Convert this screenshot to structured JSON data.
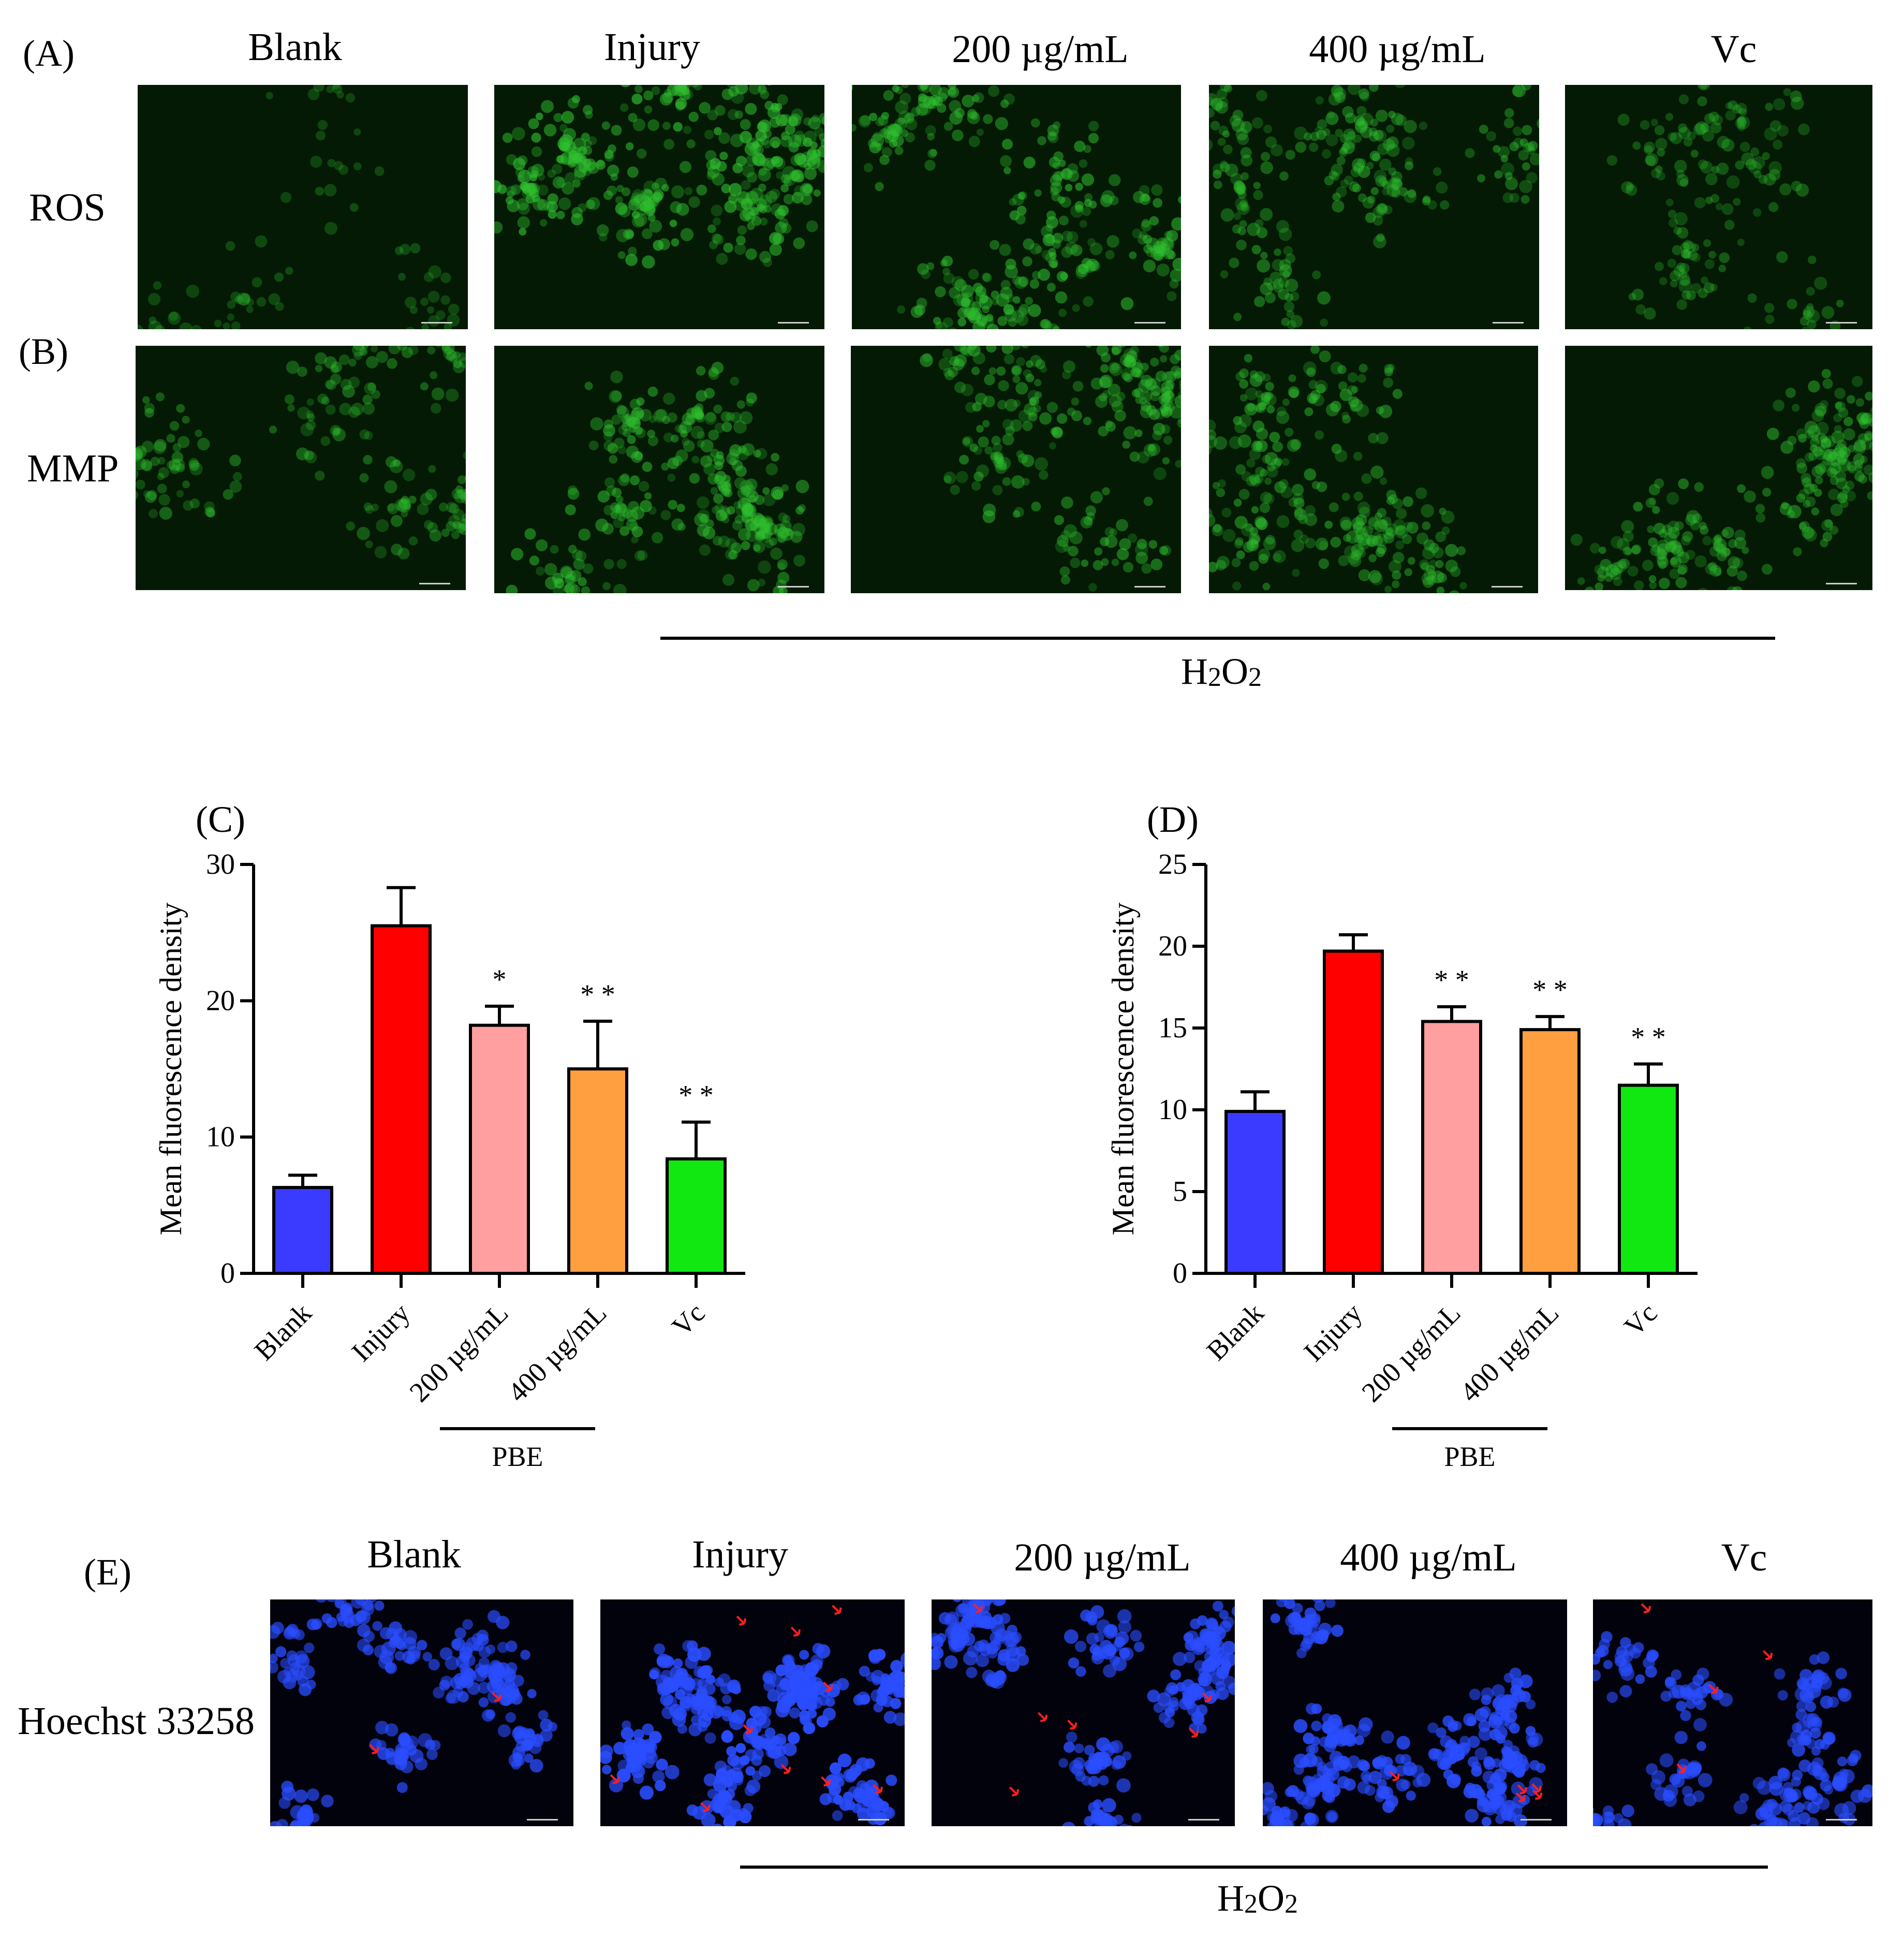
{
  "panel_labels": {
    "a": "(A)",
    "b": "(B)",
    "c": "(C)",
    "d": "(D)",
    "e": "(E)"
  },
  "top_columns": [
    "Blank",
    "Injury",
    "200 µg/mL",
    "400 µg/mL",
    "Vc"
  ],
  "row_labels": {
    "ros": "ROS",
    "mmp": "MMP",
    "hoechst": "Hoechst 33258"
  },
  "treatment": {
    "base": "H",
    "sub1": "2",
    "mid": "O",
    "sub2": "2"
  },
  "colors": {
    "blank": "#3b3bff",
    "injury": "#ff0000",
    "dose200": "#ff9f9f",
    "dose400": "#ff9f40",
    "vc": "#11e811",
    "green_stain": "#2fbf2f",
    "blue_stain": "#2a4dff",
    "arrow": "#ff2020"
  },
  "chart_data": [
    {
      "panel": "C",
      "type": "bar",
      "ylabel": "Mean fluorescence density",
      "ylim": [
        0,
        30
      ],
      "yticks": [
        0,
        10,
        20,
        30
      ],
      "categories": [
        "Blank",
        "Injury",
        "200 µg/mL",
        "400 µg/mL",
        "Vc"
      ],
      "values": [
        6.3,
        25.5,
        18.2,
        15.0,
        8.4
      ],
      "errors": [
        0.9,
        2.8,
        1.4,
        3.5,
        2.7
      ],
      "significance": [
        "",
        "",
        "*",
        "* *",
        "* *"
      ],
      "group_label": "PBE",
      "group_span": [
        2,
        3
      ]
    },
    {
      "panel": "D",
      "type": "bar",
      "ylabel": "Mean fluorescence density",
      "ylim": [
        0,
        25
      ],
      "yticks": [
        0,
        5,
        10,
        15,
        20,
        25
      ],
      "categories": [
        "Blank",
        "Injury",
        "200 µg/mL",
        "400 µg/mL",
        "Vc"
      ],
      "values": [
        9.9,
        19.7,
        15.4,
        14.9,
        11.5
      ],
      "errors": [
        1.2,
        1.0,
        0.9,
        0.8,
        1.3
      ],
      "significance": [
        "",
        "",
        "* *",
        "* *",
        "* *"
      ],
      "group_label": "PBE",
      "group_span": [
        2,
        3
      ]
    }
  ]
}
